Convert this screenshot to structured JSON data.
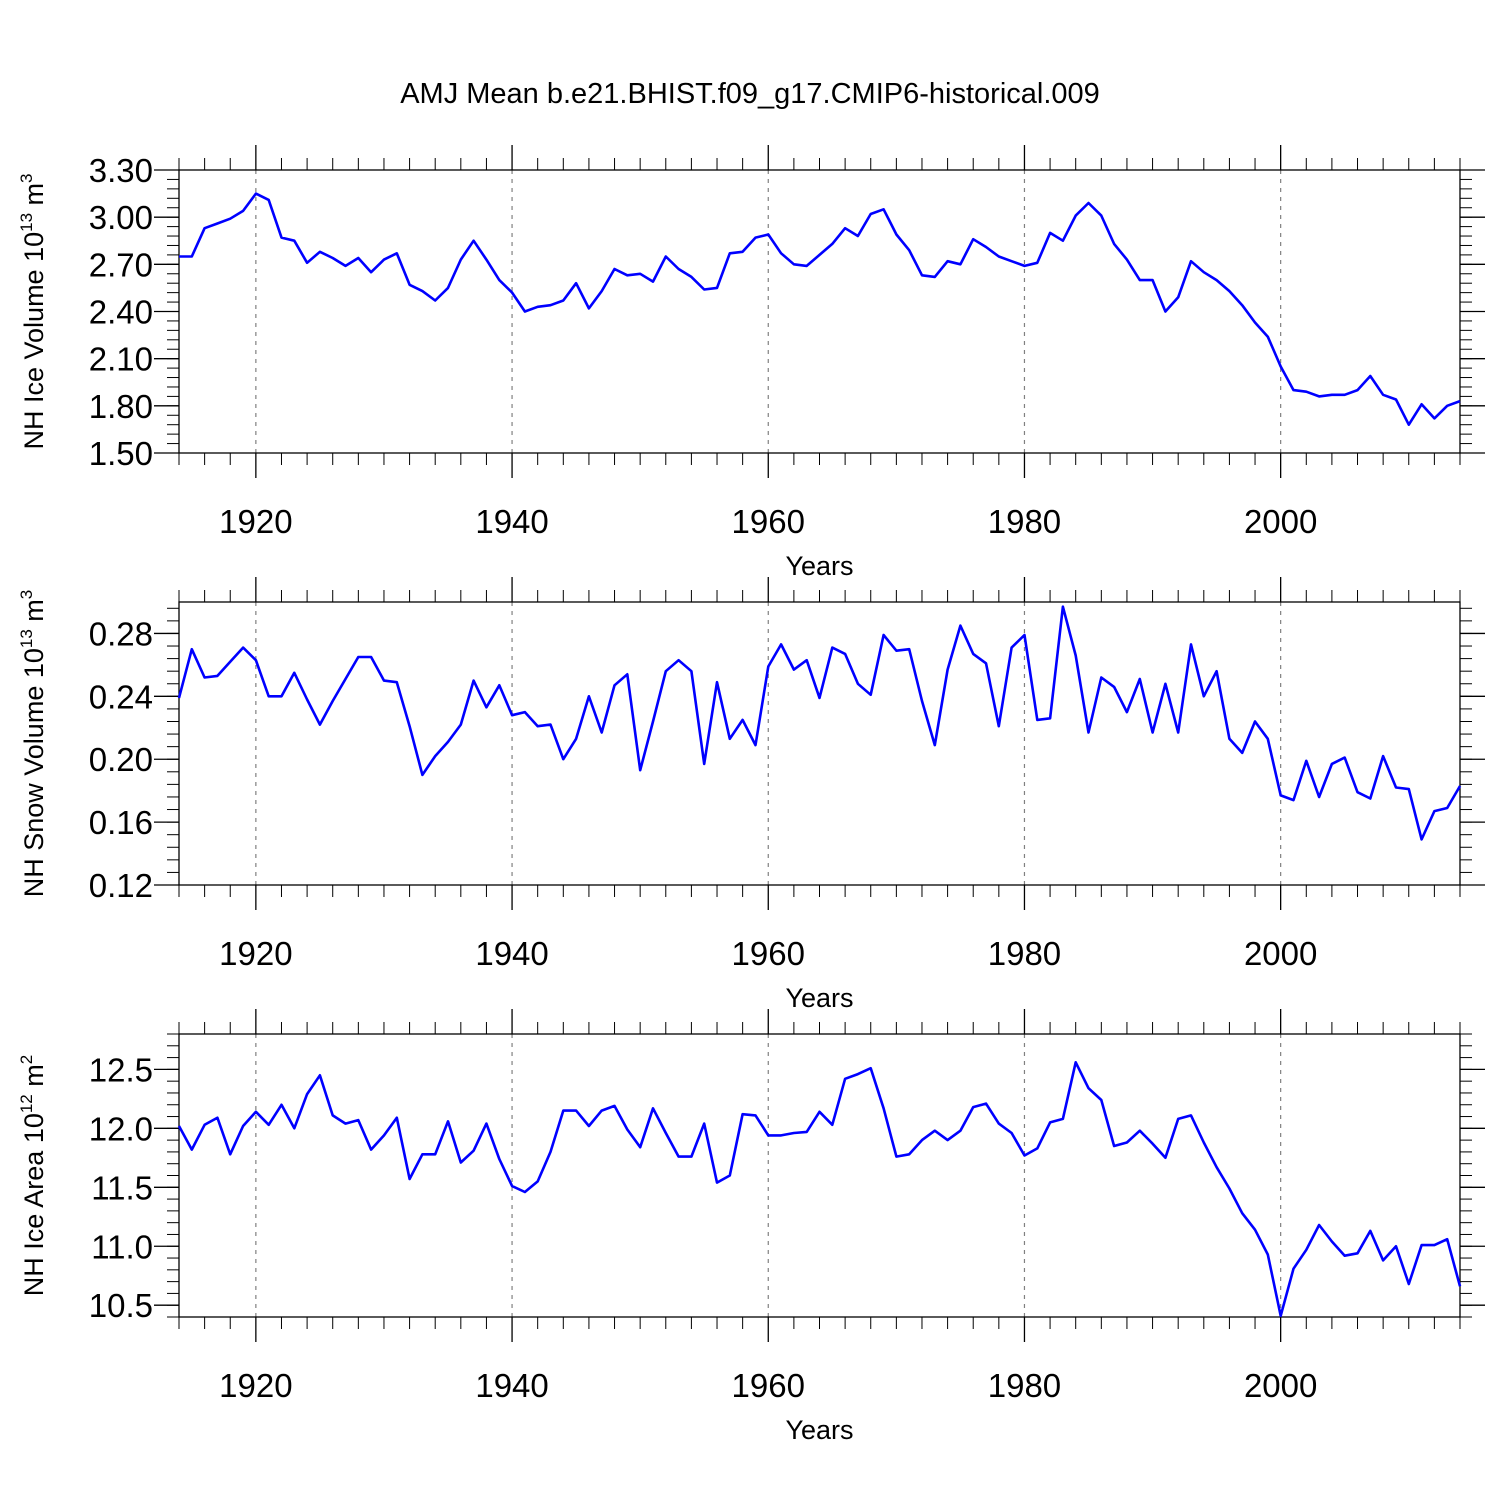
{
  "figure_title": "AMJ Mean b.e21.BHIST.f09_g17.CMIP6-historical.009",
  "colors": {
    "series": "#0000ff",
    "axis": "#000000",
    "grid": "#808080"
  },
  "chart_data": [
    {
      "type": "line",
      "title": "AMJ Mean b.e21.BHIST.f09_g17.CMIP6-historical.009",
      "xlabel": "Years",
      "ylabel_main": "NH Ice Volume 10",
      "ylabel_exp": "13",
      "ylabel_unit": " m",
      "ylabel_unit_exp": "3",
      "xlim": [
        1914,
        2014
      ],
      "ylim": [
        1.5,
        3.3
      ],
      "yticks": [
        1.5,
        1.8,
        2.1,
        2.4,
        2.7,
        3.0,
        3.3
      ],
      "ytick_labels": [
        "1.50",
        "1.80",
        "2.10",
        "2.40",
        "2.70",
        "3.00",
        "3.30"
      ],
      "xticks": [
        1920,
        1940,
        1960,
        1980,
        2000
      ],
      "xtick_labels": [
        "1920",
        "1940",
        "1960",
        "1980",
        "2000"
      ],
      "x_start": 1914,
      "series": [
        {
          "name": "NH Ice Volume",
          "values": [
            2.75,
            2.75,
            2.93,
            2.96,
            2.99,
            3.04,
            3.15,
            3.11,
            2.87,
            2.85,
            2.71,
            2.78,
            2.74,
            2.69,
            2.74,
            2.65,
            2.73,
            2.77,
            2.57,
            2.53,
            2.47,
            2.55,
            2.73,
            2.85,
            2.73,
            2.6,
            2.52,
            2.4,
            2.43,
            2.44,
            2.47,
            2.58,
            2.42,
            2.53,
            2.67,
            2.63,
            2.64,
            2.59,
            2.75,
            2.67,
            2.62,
            2.54,
            2.55,
            2.77,
            2.78,
            2.87,
            2.89,
            2.77,
            2.7,
            2.69,
            2.76,
            2.83,
            2.93,
            2.88,
            3.02,
            3.05,
            2.89,
            2.79,
            2.63,
            2.62,
            2.72,
            2.7,
            2.86,
            2.81,
            2.75,
            2.72,
            2.69,
            2.71,
            2.9,
            2.85,
            3.01,
            3.09,
            3.01,
            2.83,
            2.73,
            2.6,
            2.6,
            2.4,
            2.49,
            2.72,
            2.65,
            2.6,
            2.53,
            2.44,
            2.33,
            2.24,
            2.05,
            1.9,
            1.89,
            1.86,
            1.87,
            1.87,
            1.9,
            1.99,
            1.87,
            1.84,
            1.68,
            1.81,
            1.72,
            1.8,
            1.83
          ]
        }
      ]
    },
    {
      "type": "line",
      "xlabel": "Years",
      "ylabel_main": "NH Snow Volume 10",
      "ylabel_exp": "13",
      "ylabel_unit": " m",
      "ylabel_unit_exp": "3",
      "xlim": [
        1914,
        2014
      ],
      "ylim": [
        0.12,
        0.3
      ],
      "yticks": [
        0.12,
        0.16,
        0.2,
        0.24,
        0.28
      ],
      "ytick_labels": [
        "0.12",
        "0.16",
        "0.20",
        "0.24",
        "0.28"
      ],
      "xticks": [
        1920,
        1940,
        1960,
        1980,
        2000
      ],
      "xtick_labels": [
        "1920",
        "1940",
        "1960",
        "1980",
        "2000"
      ],
      "x_start": 1914,
      "series": [
        {
          "name": "NH Snow Volume",
          "values": [
            0.239,
            0.27,
            0.252,
            0.253,
            0.262,
            0.271,
            0.263,
            0.24,
            0.24,
            0.255,
            0.238,
            0.222,
            0.237,
            0.251,
            0.265,
            0.265,
            0.25,
            0.249,
            0.221,
            0.19,
            0.202,
            0.211,
            0.222,
            0.25,
            0.233,
            0.247,
            0.228,
            0.23,
            0.221,
            0.222,
            0.2,
            0.213,
            0.24,
            0.217,
            0.247,
            0.254,
            0.193,
            0.224,
            0.256,
            0.263,
            0.256,
            0.197,
            0.249,
            0.213,
            0.225,
            0.209,
            0.259,
            0.273,
            0.257,
            0.263,
            0.239,
            0.271,
            0.267,
            0.248,
            0.241,
            0.279,
            0.269,
            0.27,
            0.237,
            0.209,
            0.257,
            0.285,
            0.267,
            0.261,
            0.221,
            0.271,
            0.279,
            0.225,
            0.226,
            0.297,
            0.266,
            0.217,
            0.252,
            0.246,
            0.23,
            0.251,
            0.217,
            0.248,
            0.217,
            0.273,
            0.24,
            0.256,
            0.213,
            0.204,
            0.224,
            0.213,
            0.177,
            0.174,
            0.199,
            0.176,
            0.197,
            0.201,
            0.179,
            0.175,
            0.202,
            0.182,
            0.181,
            0.149,
            0.167,
            0.169,
            0.183
          ]
        }
      ]
    },
    {
      "type": "line",
      "xlabel": "Years",
      "ylabel_main": "NH Ice Area 10",
      "ylabel_exp": "12",
      "ylabel_unit": " m",
      "ylabel_unit_exp": "2",
      "xlim": [
        1914,
        2014
      ],
      "ylim": [
        10.4,
        12.8
      ],
      "yticks": [
        10.5,
        11.0,
        11.5,
        12.0,
        12.5
      ],
      "ytick_labels": [
        "10.5",
        "11.0",
        "11.5",
        "12.0",
        "12.5"
      ],
      "xticks": [
        1920,
        1940,
        1960,
        1980,
        2000
      ],
      "xtick_labels": [
        "1920",
        "1940",
        "1960",
        "1980",
        "2000"
      ],
      "x_start": 1914,
      "series": [
        {
          "name": "NH Ice Area",
          "values": [
            12.02,
            11.82,
            12.03,
            12.09,
            11.78,
            12.02,
            12.14,
            12.03,
            12.2,
            12.0,
            12.29,
            12.45,
            12.11,
            12.04,
            12.07,
            11.82,
            11.94,
            12.09,
            11.57,
            11.78,
            11.78,
            12.06,
            11.71,
            11.81,
            12.04,
            11.74,
            11.51,
            11.46,
            11.55,
            11.8,
            12.15,
            12.15,
            12.02,
            12.15,
            12.19,
            11.99,
            11.84,
            12.17,
            11.96,
            11.76,
            11.76,
            12.04,
            11.54,
            11.6,
            12.12,
            12.11,
            11.94,
            11.94,
            11.96,
            11.97,
            12.14,
            12.03,
            12.42,
            12.46,
            12.51,
            12.17,
            11.76,
            11.78,
            11.9,
            11.98,
            11.9,
            11.98,
            12.18,
            12.21,
            12.04,
            11.96,
            11.77,
            11.83,
            12.05,
            12.08,
            12.56,
            12.34,
            12.24,
            11.85,
            11.88,
            11.98,
            11.87,
            11.75,
            12.08,
            12.11,
            11.88,
            11.67,
            11.49,
            11.28,
            11.14,
            10.93,
            10.41,
            10.81,
            10.97,
            11.18,
            11.04,
            10.92,
            10.94,
            11.13,
            10.88,
            11.0,
            10.68,
            11.01,
            11.01,
            11.06,
            10.66
          ]
        }
      ]
    }
  ]
}
